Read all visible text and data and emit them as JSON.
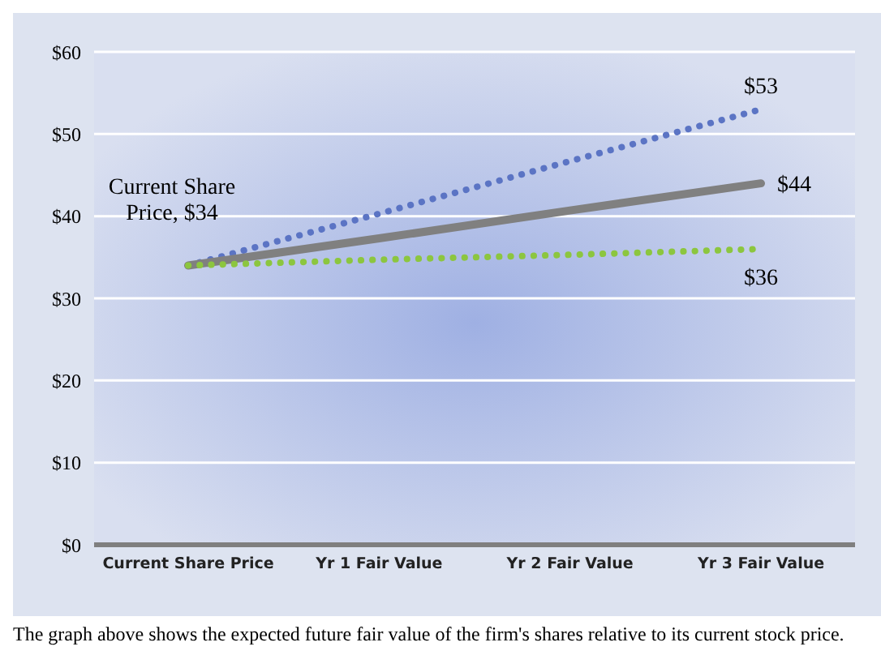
{
  "chart_data": {
    "type": "line",
    "categories": [
      "Current Share Price",
      "Yr 1 Fair Value",
      "Yr 2 Fair Value",
      "Yr 3 Fair Value"
    ],
    "series": [
      {
        "color": "#5b74c4",
        "line_style": "dotted",
        "values": [
          34,
          40.3,
          46.7,
          53
        ],
        "value_labels": [
          null,
          null,
          null,
          "$53"
        ]
      },
      {
        "color": "#808080",
        "line_style": "solid",
        "values": [
          34,
          37.3,
          40.7,
          44
        ],
        "value_labels": [
          "Current Share Price, $34",
          null,
          null,
          "$44"
        ]
      },
      {
        "color": "#8cc63f",
        "line_style": "dotted",
        "values": [
          34,
          34.7,
          35.3,
          36
        ],
        "value_labels": [
          null,
          null,
          null,
          "$36"
        ]
      }
    ],
    "ylim": [
      0,
      60
    ],
    "yticks": [
      {
        "value": 0,
        "label": "$0"
      },
      {
        "value": 10,
        "label": "$10"
      },
      {
        "value": 20,
        "label": "$20"
      },
      {
        "value": 30,
        "label": "$30"
      },
      {
        "value": 40,
        "label": "$40"
      },
      {
        "value": 50,
        "label": "$50"
      },
      {
        "value": 60,
        "label": "$60"
      }
    ],
    "grid": "y",
    "annotations": [
      "The graph above shows the expected future fair value of the firm's shares relative to its current stock price."
    ]
  }
}
